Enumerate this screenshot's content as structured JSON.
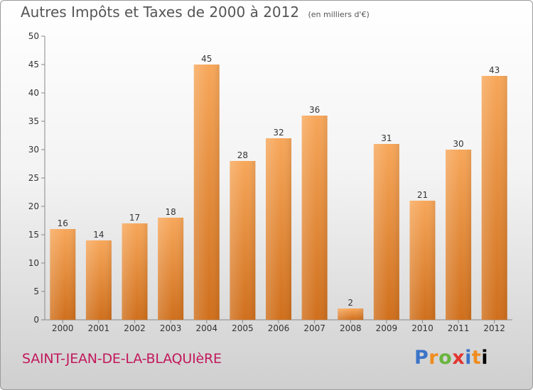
{
  "header": {
    "title": "Autres Impôts et Taxes de 2000 à 2012",
    "unit": "(en milliers d'€)"
  },
  "footer": {
    "city": "SAINT-JEAN-DE-LA-BLAQUIèRE",
    "logo_letters": [
      "P",
      "r",
      "o",
      "x",
      "i",
      "t",
      "i"
    ]
  },
  "chart_data": {
    "type": "bar",
    "title": "Autres Impôts et Taxes de 2000 à 2012",
    "subtitle": "(en milliers d'€)",
    "categories": [
      "2000",
      "2001",
      "2002",
      "2003",
      "2004",
      "2005",
      "2006",
      "2007",
      "2008",
      "2009",
      "2010",
      "2011",
      "2012"
    ],
    "values": [
      16,
      14,
      17,
      18,
      45,
      28,
      32,
      36,
      2,
      31,
      21,
      30,
      43
    ],
    "ylim": [
      0,
      50
    ],
    "yticks": [
      0,
      5,
      10,
      15,
      20,
      25,
      30,
      35,
      40,
      45,
      50
    ],
    "grid": false,
    "data_labels": true,
    "bar_color_top": "#f7a75a",
    "bar_color_bottom": "#cf6f1c"
  }
}
